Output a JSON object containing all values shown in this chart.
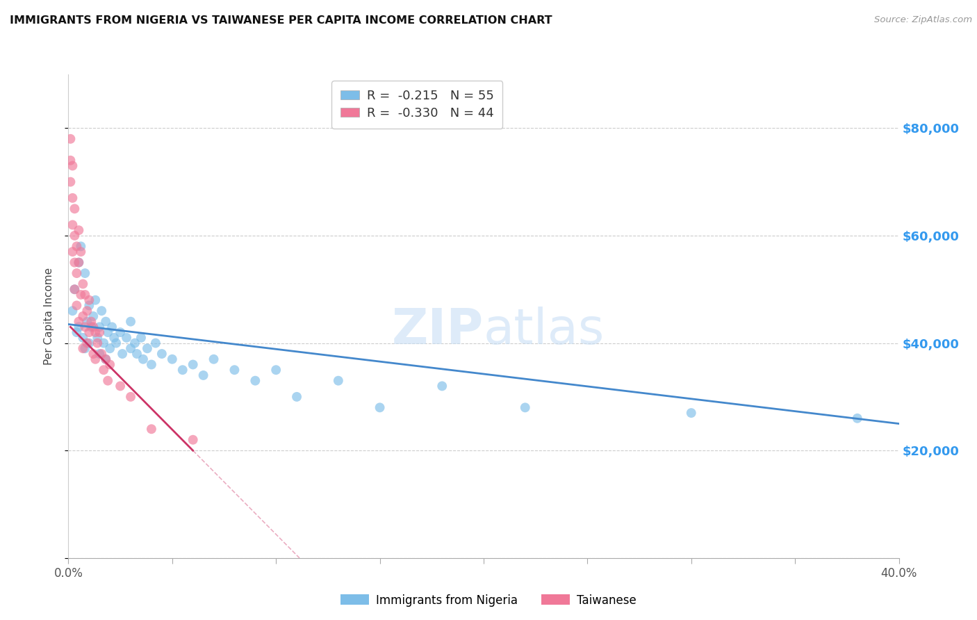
{
  "title": "IMMIGRANTS FROM NIGERIA VS TAIWANESE PER CAPITA INCOME CORRELATION CHART",
  "source": "Source: ZipAtlas.com",
  "ylabel": "Per Capita Income",
  "x_min": 0.0,
  "x_max": 0.4,
  "y_min": 0,
  "y_max": 90000,
  "x_ticks": [
    0.0,
    0.05,
    0.1,
    0.15,
    0.2,
    0.25,
    0.3,
    0.35,
    0.4
  ],
  "y_ticks": [
    0,
    20000,
    40000,
    60000,
    80000
  ],
  "y_tick_labels_right": [
    "",
    "$20,000",
    "$40,000",
    "$60,000",
    "$80,000"
  ],
  "legend_labels": [
    "Immigrants from Nigeria",
    "Taiwanese"
  ],
  "legend_R": [
    "-0.215",
    "-0.330"
  ],
  "legend_N": [
    "55",
    "44"
  ],
  "blue_scatter_color": "#7dbde8",
  "pink_scatter_color": "#f07898",
  "blue_line_color": "#4488cc",
  "pink_line_color": "#cc3366",
  "watermark": "ZIPatlas",
  "nigeria_x": [
    0.002,
    0.003,
    0.004,
    0.005,
    0.005,
    0.006,
    0.007,
    0.008,
    0.008,
    0.009,
    0.01,
    0.01,
    0.011,
    0.012,
    0.013,
    0.014,
    0.015,
    0.015,
    0.016,
    0.017,
    0.018,
    0.018,
    0.019,
    0.02,
    0.021,
    0.022,
    0.023,
    0.025,
    0.026,
    0.028,
    0.03,
    0.03,
    0.032,
    0.033,
    0.035,
    0.036,
    0.038,
    0.04,
    0.042,
    0.045,
    0.05,
    0.055,
    0.06,
    0.065,
    0.07,
    0.08,
    0.09,
    0.1,
    0.11,
    0.13,
    0.15,
    0.18,
    0.22,
    0.3,
    0.38
  ],
  "nigeria_y": [
    46000,
    50000,
    42000,
    55000,
    43000,
    58000,
    41000,
    53000,
    39000,
    44000,
    47000,
    40000,
    43000,
    45000,
    48000,
    41000,
    43000,
    38000,
    46000,
    40000,
    44000,
    37000,
    42000,
    39000,
    43000,
    41000,
    40000,
    42000,
    38000,
    41000,
    44000,
    39000,
    40000,
    38000,
    41000,
    37000,
    39000,
    36000,
    40000,
    38000,
    37000,
    35000,
    36000,
    34000,
    37000,
    35000,
    33000,
    35000,
    30000,
    33000,
    28000,
    32000,
    28000,
    27000,
    26000
  ],
  "taiwanese_x": [
    0.001,
    0.001,
    0.001,
    0.002,
    0.002,
    0.002,
    0.002,
    0.003,
    0.003,
    0.003,
    0.003,
    0.004,
    0.004,
    0.004,
    0.005,
    0.005,
    0.005,
    0.006,
    0.006,
    0.007,
    0.007,
    0.007,
    0.008,
    0.008,
    0.009,
    0.009,
    0.01,
    0.01,
    0.011,
    0.012,
    0.012,
    0.013,
    0.013,
    0.014,
    0.015,
    0.016,
    0.017,
    0.018,
    0.019,
    0.02,
    0.025,
    0.03,
    0.04,
    0.06
  ],
  "taiwanese_y": [
    78000,
    74000,
    70000,
    73000,
    67000,
    62000,
    57000,
    65000,
    60000,
    55000,
    50000,
    58000,
    53000,
    47000,
    61000,
    55000,
    44000,
    57000,
    49000,
    51000,
    45000,
    39000,
    49000,
    43000,
    46000,
    40000,
    48000,
    42000,
    44000,
    43000,
    38000,
    42000,
    37000,
    40000,
    42000,
    38000,
    35000,
    37000,
    33000,
    36000,
    32000,
    30000,
    24000,
    22000
  ],
  "blue_line_x0": 0.0,
  "blue_line_y0": 43500,
  "blue_line_x1": 0.4,
  "blue_line_y1": 25000,
  "pink_line_x0": 0.001,
  "pink_line_y0": 43000,
  "pink_line_x1": 0.06,
  "pink_line_y1": 20000
}
